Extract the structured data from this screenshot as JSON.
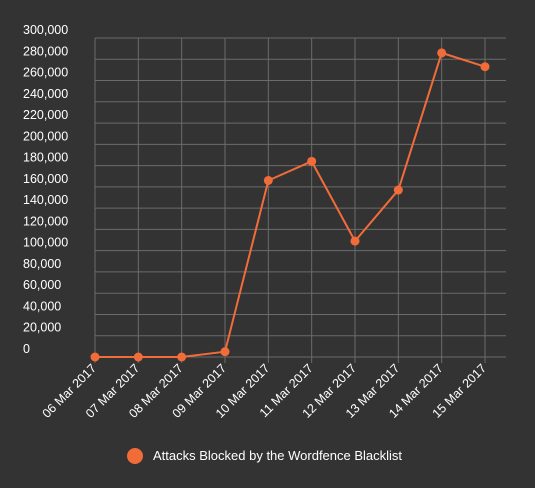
{
  "chart_data": {
    "type": "line",
    "title": "",
    "xlabel": "",
    "ylabel": "",
    "categories": [
      "06 Mar 2017",
      "07 Mar 2017",
      "08 Mar 2017",
      "09 Mar 2017",
      "10 Mar 2017",
      "11 Mar 2017",
      "12 Mar 2017",
      "13 Mar 2017",
      "14 Mar 2017",
      "15 Mar 2017"
    ],
    "series": [
      {
        "name": "Attacks Blocked by the Wordfence Blacklist",
        "values": [
          0,
          0,
          0,
          5000,
          166000,
          184000,
          109000,
          157000,
          286000,
          273000
        ],
        "color": "#f26c3a"
      }
    ],
    "ylim": [
      0,
      300000
    ],
    "yticks": [
      0,
      20000,
      40000,
      60000,
      80000,
      100000,
      120000,
      140000,
      160000,
      180000,
      200000,
      220000,
      240000,
      260000,
      280000,
      300000
    ],
    "ytick_labels": [
      "0",
      "20,000",
      "40,000",
      "60,000",
      "80,000",
      "100,000",
      "120,000",
      "140,000",
      "160,000",
      "180,000",
      "200,000",
      "220,000",
      "240,000",
      "260,000",
      "280,000",
      "300,000"
    ],
    "grid": true,
    "legend_position": "bottom",
    "colors": {
      "background": "#333333",
      "grid": "#6b6b6b",
      "text": "#ffffff",
      "series": "#f26c3a"
    }
  }
}
